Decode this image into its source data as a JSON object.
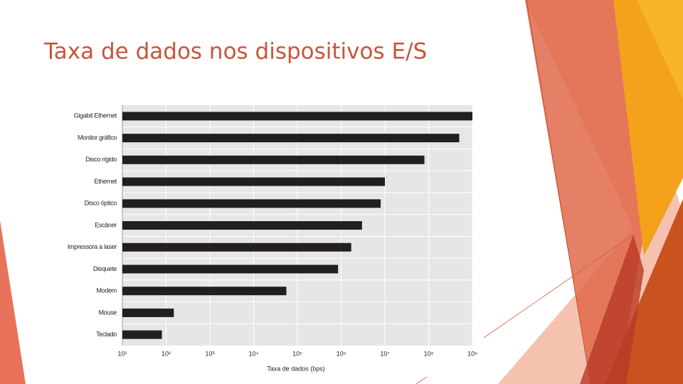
{
  "chart_data": {
    "type": "bar",
    "orientation": "horizontal",
    "title": "Taxa de dados nos dispositivos E/S",
    "categories": [
      "Gigabit Ethernet",
      "Monitor gráfico",
      "Disco rígido",
      "Ethernet",
      "Disco óptico",
      "Escâner",
      "Impressora a laser",
      "Disquete",
      "Modem",
      "Mouse",
      "Teclado"
    ],
    "values": [
      1000000000,
      500000000,
      80000000,
      10000000,
      8000000,
      3000000,
      1700000,
      850000,
      56000,
      150,
      80
    ],
    "color": "#231f20",
    "xlabel": "Taxa de dados (bps)",
    "log_x": true,
    "grid": true,
    "xlim": [
      10,
      1000000000
    ],
    "xticks": [
      {
        "value": 10,
        "label": "10¹"
      },
      {
        "value": 100,
        "label": "10²"
      },
      {
        "value": 1000,
        "label": "10³"
      },
      {
        "value": 10000,
        "label": "10⁴"
      },
      {
        "value": 100000,
        "label": "10⁵"
      },
      {
        "value": 1000000,
        "label": "10⁶"
      },
      {
        "value": 10000000,
        "label": "10⁷"
      },
      {
        "value": 100000000,
        "label": "10⁸"
      },
      {
        "value": 1000000000,
        "label": "10⁹"
      }
    ]
  }
}
